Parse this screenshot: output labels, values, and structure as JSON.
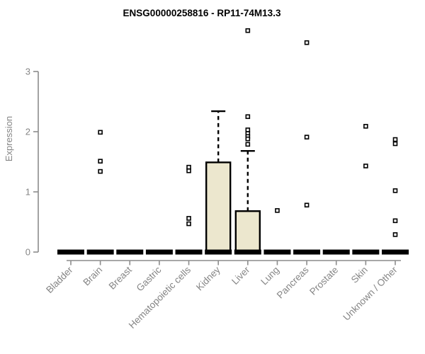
{
  "chart_data": {
    "type": "boxplot",
    "title": "ENSG00000258816 - RP11-74M13.3",
    "ylabel": "Expression",
    "xlabel": "",
    "ylim": [
      0,
      3
    ],
    "yticks": [
      "0",
      "1",
      "2",
      "3"
    ],
    "grid": false,
    "legend": "none",
    "categories": [
      "Bladder",
      "Brain",
      "Breast",
      "Gastric",
      "Hematopoietic cells",
      "Kidney",
      "Liver",
      "Lung",
      "Pancreas",
      "Prostate",
      "Skin",
      "Unknown / Other"
    ],
    "boxes": [
      {
        "category": "Bladder",
        "whisker_low": 0,
        "q1": 0,
        "median": 0,
        "q3": 0,
        "whisker_high": 0,
        "outliers": []
      },
      {
        "category": "Brain",
        "whisker_low": 0,
        "q1": 0,
        "median": 0,
        "q3": 0,
        "whisker_high": 0,
        "outliers": [
          1.99,
          1.51,
          1.34
        ]
      },
      {
        "category": "Breast",
        "whisker_low": 0,
        "q1": 0,
        "median": 0,
        "q3": 0,
        "whisker_high": 0,
        "outliers": []
      },
      {
        "category": "Gastric",
        "whisker_low": 0,
        "q1": 0,
        "median": 0,
        "q3": 0,
        "whisker_high": 0,
        "outliers": []
      },
      {
        "category": "Hematopoietic cells",
        "whisker_low": 0,
        "q1": 0,
        "median": 0,
        "q3": 0,
        "whisker_high": 0,
        "outliers": [
          1.41,
          1.35,
          0.56,
          0.47
        ]
      },
      {
        "category": "Kidney",
        "whisker_low": 0,
        "q1": 0,
        "median": 0,
        "q3": 1.49,
        "whisker_high": 2.34,
        "outliers": []
      },
      {
        "category": "Liver",
        "whisker_low": 0,
        "q1": 0,
        "median": 0,
        "q3": 0.68,
        "whisker_high": 1.68,
        "outliers": [
          3.68,
          2.25,
          2.03,
          1.97,
          1.92,
          1.88,
          1.79
        ]
      },
      {
        "category": "Lung",
        "whisker_low": 0,
        "q1": 0,
        "median": 0,
        "q3": 0,
        "whisker_high": 0,
        "outliers": [
          0.69
        ]
      },
      {
        "category": "Pancreas",
        "whisker_low": 0,
        "q1": 0,
        "median": 0,
        "q3": 0,
        "whisker_high": 0,
        "outliers": [
          3.48,
          1.91,
          0.78
        ]
      },
      {
        "category": "Prostate",
        "whisker_low": 0,
        "q1": 0,
        "median": 0,
        "q3": 0,
        "whisker_high": 0,
        "outliers": []
      },
      {
        "category": "Skin",
        "whisker_low": 0,
        "q1": 0,
        "median": 0,
        "q3": 0,
        "whisker_high": 0,
        "outliers": [
          2.09,
          1.43
        ]
      },
      {
        "category": "Unknown / Other",
        "whisker_low": 0,
        "q1": 0,
        "median": 0,
        "q3": 0,
        "whisker_high": 0,
        "outliers": [
          1.87,
          1.8,
          1.02,
          0.52,
          0.29
        ]
      }
    ],
    "colors": {
      "background": "#FFFFFF",
      "box_fill": "#ECE7CE",
      "box_border": "#000000",
      "median": "#000000",
      "whisker": "#000000",
      "outlier_stroke": "#000000",
      "outlier_fill": "#FFFFFF",
      "axis_line": "#8C8C8C",
      "axis_text": "#858585",
      "title_text": "#000000"
    }
  }
}
